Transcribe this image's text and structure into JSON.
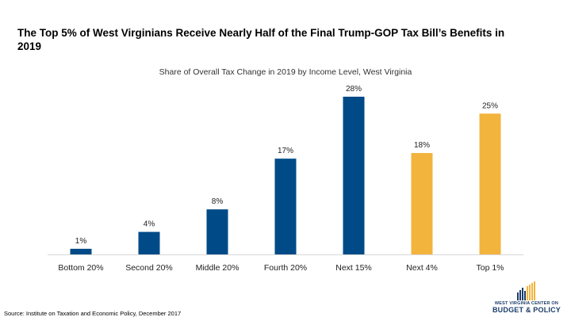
{
  "title": "The Top 5% of West Virginians Receive Nearly Half of the Final Trump-GOP Tax Bill’s Benefits in 2019",
  "source": "Source: Institute on Taxation and Economic Policy, December 2017",
  "logo": {
    "line1": "WEST VIRGINIA CENTER ON",
    "line2": "BUDGET & POLICY"
  },
  "colors": {
    "primary": "#004b87",
    "highlight": "#f2b43c",
    "logo_navy": "#1a3d6b"
  },
  "chart_data": {
    "type": "bar",
    "title": "Share of Overall Tax Change in 2019 by Income Level, West Virginia",
    "categories": [
      "Bottom 20%",
      "Second 20%",
      "Middle 20%",
      "Fourth 20%",
      "Next 15%",
      "Next 4%",
      "Top 1%"
    ],
    "values": [
      1,
      4,
      8,
      17,
      28,
      18,
      25
    ],
    "value_labels": [
      "1%",
      "4%",
      "8%",
      "17%",
      "28%",
      "18%",
      "25%"
    ],
    "bar_colors": [
      "#004b87",
      "#004b87",
      "#004b87",
      "#004b87",
      "#004b87",
      "#f2b43c",
      "#f2b43c"
    ],
    "ylim": [
      0,
      28
    ],
    "xlabel": "",
    "ylabel": "",
    "grid": false,
    "legend": "none"
  }
}
